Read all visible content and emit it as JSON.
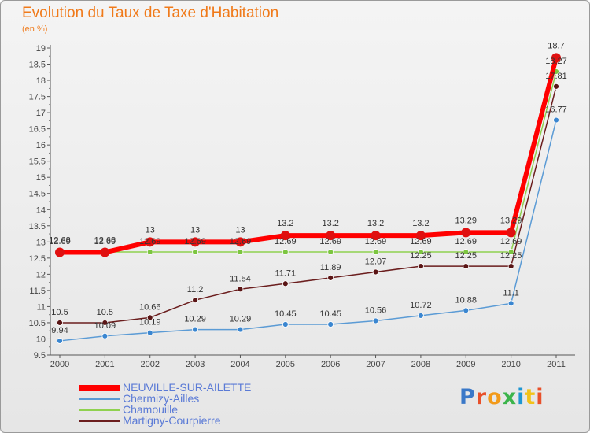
{
  "chart_data": {
    "type": "line",
    "title": "Evolution du Taux de Taxe d'Habitation",
    "unit_label": "(en %)",
    "x": [
      "2000",
      "2001",
      "2002",
      "2003",
      "2004",
      "2005",
      "2006",
      "2007",
      "2008",
      "2009",
      "2010",
      "2011"
    ],
    "ylim": [
      9.5,
      19
    ],
    "yticks": [
      "9.5",
      "10",
      "10.5",
      "11",
      "11.5",
      "12",
      "12.5",
      "13",
      "13.5",
      "14",
      "14.5",
      "15",
      "15.5",
      "16",
      "16.5",
      "17",
      "17.5",
      "18",
      "18.5",
      "19"
    ],
    "grid": false,
    "legend_position": "bottom-left",
    "series": [
      {
        "name": "NEUVILLE-SUR-AILETTE",
        "color": "#ff0000",
        "values": [
          12.68,
          12.68,
          13,
          13,
          13,
          13.2,
          13.2,
          13.2,
          13.2,
          13.29,
          13.29,
          18.7
        ],
        "labels": [
          "12.68",
          "12.68",
          "13",
          "13",
          "13",
          "13.2",
          "13.2",
          "13.2",
          "13.2",
          "13.29",
          "13.29",
          "18.7"
        ]
      },
      {
        "name": "Chermizy-Ailles",
        "color": "#5b9bd5",
        "values": [
          9.94,
          10.09,
          10.19,
          10.29,
          10.29,
          10.45,
          10.45,
          10.56,
          10.72,
          10.88,
          11.1,
          16.77
        ],
        "labels": [
          "9.94",
          "10.09",
          "10.19",
          "10.29",
          "10.29",
          "10.45",
          "10.45",
          "10.56",
          "10.72",
          "10.88",
          "11.1",
          "16.77"
        ]
      },
      {
        "name": "Chamouille",
        "color": "#8fd14f",
        "values": [
          12.69,
          12.69,
          12.69,
          12.69,
          12.69,
          12.69,
          12.69,
          12.69,
          12.69,
          12.69,
          12.69,
          18.27
        ],
        "labels": [
          "12.69",
          "12.69",
          "12.69",
          "12.69",
          "12.69",
          "12.69",
          "12.69",
          "12.69",
          "12.69",
          "12.69",
          "12.69",
          "18.27"
        ]
      },
      {
        "name": "Martigny-Courpierre",
        "color": "#6b1e1e",
        "values": [
          10.5,
          10.5,
          10.66,
          11.2,
          11.54,
          11.71,
          11.89,
          12.07,
          12.25,
          12.25,
          12.25,
          17.81
        ],
        "labels": [
          "10.5",
          "10.5",
          "10.66",
          "11.2",
          "11.54",
          "11.71",
          "11.89",
          "12.07",
          "12.25",
          "12.25",
          "12.25",
          "17.81"
        ]
      }
    ]
  },
  "logo": {
    "text": "Proxiti",
    "colors": [
      "#3a78c8",
      "#e8502a",
      "#f29a1a",
      "#3cb44b",
      "#1e96d2",
      "#f2c21a",
      "#e8502a"
    ]
  }
}
